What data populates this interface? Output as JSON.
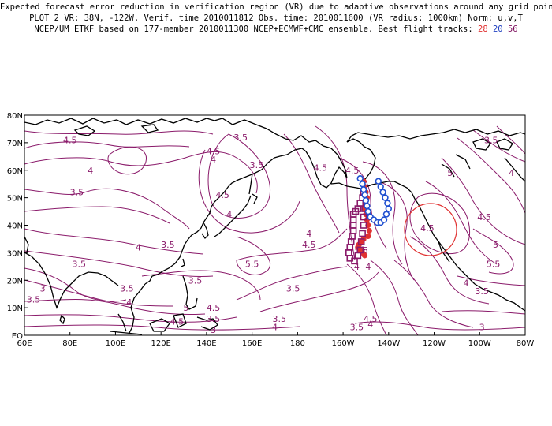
{
  "header": {
    "line1": "Expected forecast error reduction in verification region (VR) due to adaptive observations around any grid point.",
    "line2": "PLOT 2 VR: 38N, -122W, Verif. time 2010011812 Obs. time: 2010011600 (VR radius: 1000km) Norm: u,v,T",
    "line3_text": "NCEP/UM ETKF based on 177-member 2010011300 NCEP+ECMWF+CMC ensemble. Best flight tracks: ",
    "track_28": "28",
    "track_20": "20",
    "track_56": "56"
  },
  "axes": {
    "x_ticks": [
      "60E",
      "80E",
      "100E",
      "120E",
      "140E",
      "160E",
      "180",
      "160W",
      "140W",
      "120W",
      "100W",
      "80W"
    ],
    "y_ticks": [
      "80N",
      "70N",
      "60N",
      "50N",
      "40N",
      "30N",
      "20N",
      "10N",
      "EQ"
    ]
  },
  "map": {
    "extent": {
      "lon_min": 60,
      "lon_max": 280,
      "lat_min": 0,
      "lat_max": 80
    },
    "verification_region": {
      "lat": 38,
      "lon": -122,
      "radius_km": 1000
    },
    "contour_color": "#8a1a6a",
    "contour_labels": [
      {
        "text": "4.5",
        "lon": 80,
        "lat": 71
      },
      {
        "text": "4",
        "lon": 89,
        "lat": 60
      },
      {
        "text": "3.5",
        "lon": 83,
        "lat": 52
      },
      {
        "text": "4",
        "lon": 110,
        "lat": 32
      },
      {
        "text": "3.5",
        "lon": 84,
        "lat": 26
      },
      {
        "text": "3",
        "lon": 68,
        "lat": 17
      },
      {
        "text": "3.5",
        "lon": 64,
        "lat": 13
      },
      {
        "text": "3.5",
        "lon": 105,
        "lat": 17
      },
      {
        "text": "4",
        "lon": 106,
        "lat": 12
      },
      {
        "text": "3.5",
        "lon": 123,
        "lat": 33
      },
      {
        "text": "5",
        "lon": 131,
        "lat": 10
      },
      {
        "text": "4.5",
        "lon": 127,
        "lat": 5
      },
      {
        "text": "3.5",
        "lon": 135,
        "lat": 20
      },
      {
        "text": "4.5",
        "lon": 143,
        "lat": 10
      },
      {
        "text": "3.5",
        "lon": 143,
        "lat": 6
      },
      {
        "text": "3",
        "lon": 143,
        "lat": 2
      },
      {
        "text": "4.5",
        "lon": 143,
        "lat": 67
      },
      {
        "text": "4",
        "lon": 143,
        "lat": 64
      },
      {
        "text": "3.5",
        "lon": 155,
        "lat": 72
      },
      {
        "text": "4.5",
        "lon": 147,
        "lat": 51
      },
      {
        "text": "4",
        "lon": 150,
        "lat": 44
      },
      {
        "text": "3.5",
        "lon": 162,
        "lat": 62
      },
      {
        "text": "5.5",
        "lon": 160,
        "lat": 26
      },
      {
        "text": "4",
        "lon": 185,
        "lat": 37
      },
      {
        "text": "4.5",
        "lon": 185,
        "lat": 33
      },
      {
        "text": "3.5",
        "lon": 178,
        "lat": 17
      },
      {
        "text": "3.5",
        "lon": 172,
        "lat": 6
      },
      {
        "text": "4",
        "lon": 170,
        "lat": 3
      },
      {
        "text": "4.5",
        "lon": 190,
        "lat": 61
      },
      {
        "text": "4.5",
        "lon": 204,
        "lat": 60
      },
      {
        "text": "4",
        "lon": 206,
        "lat": 25
      },
      {
        "text": "4",
        "lon": 211,
        "lat": 25
      },
      {
        "text": "5.5",
        "lon": 208,
        "lat": 31
      },
      {
        "text": "5",
        "lon": 209,
        "lat": 30
      },
      {
        "text": "4.5",
        "lon": 212,
        "lat": 6
      },
      {
        "text": "4",
        "lon": 212,
        "lat": 4
      },
      {
        "text": "3.5",
        "lon": 206,
        "lat": 3
      },
      {
        "text": "5",
        "lon": 247,
        "lat": 59
      },
      {
        "text": "4.5",
        "lon": 237,
        "lat": 39
      },
      {
        "text": "4.5",
        "lon": 262,
        "lat": 43
      },
      {
        "text": "5",
        "lon": 267,
        "lat": 33
      },
      {
        "text": "5.5",
        "lon": 266,
        "lat": 26
      },
      {
        "text": "4",
        "lon": 254,
        "lat": 19
      },
      {
        "text": "3.5",
        "lon": 261,
        "lat": 16
      },
      {
        "text": "3",
        "lon": 261,
        "lat": 3
      },
      {
        "text": "3.5",
        "lon": 265,
        "lat": 71
      },
      {
        "text": "4",
        "lon": 274,
        "lat": 59
      }
    ],
    "tracks": {
      "track_28": {
        "color": "#e03030",
        "marker": "filled-circle",
        "points": [
          [
            209,
            56
          ],
          [
            209.5,
            54
          ],
          [
            210,
            52
          ],
          [
            210.5,
            50
          ],
          [
            210,
            48
          ],
          [
            209.5,
            46
          ],
          [
            210,
            44
          ],
          [
            210.5,
            42
          ],
          [
            211,
            40
          ],
          [
            211.5,
            38
          ],
          [
            211,
            36
          ],
          [
            209,
            35
          ],
          [
            208,
            34
          ],
          [
            207,
            33
          ],
          [
            206.5,
            32
          ],
          [
            207.5,
            31
          ],
          [
            208.5,
            30
          ],
          [
            209.5,
            29
          ]
        ]
      },
      "track_20": {
        "color": "#2050d0",
        "marker": "open-circle",
        "points": [
          [
            207.5,
            57
          ],
          [
            208.5,
            55
          ],
          [
            209,
            53
          ],
          [
            209.5,
            51
          ],
          [
            210,
            49
          ],
          [
            210.5,
            47
          ],
          [
            211,
            45
          ],
          [
            212,
            43
          ],
          [
            213.5,
            42
          ],
          [
            215,
            41
          ],
          [
            216.5,
            41
          ],
          [
            218,
            42
          ],
          [
            219,
            44
          ],
          [
            220,
            46
          ],
          [
            219.5,
            48
          ],
          [
            218.5,
            50
          ],
          [
            217.5,
            52
          ],
          [
            216.5,
            54
          ],
          [
            215.5,
            56
          ]
        ]
      },
      "track_56": {
        "color": "#8a1a6a",
        "marker": "open-square",
        "points": [
          [
            209,
            52
          ],
          [
            208.5,
            50
          ],
          [
            207.5,
            48
          ],
          [
            206.5,
            46
          ],
          [
            205.5,
            45
          ],
          [
            204.5,
            44
          ],
          [
            204.5,
            42
          ],
          [
            204.5,
            40
          ],
          [
            204.5,
            38
          ],
          [
            204,
            36
          ],
          [
            203.5,
            34
          ],
          [
            203,
            32
          ],
          [
            202.5,
            30
          ],
          [
            203,
            28
          ],
          [
            205,
            27
          ],
          [
            206.5,
            29
          ],
          [
            207.5,
            31
          ],
          [
            208,
            34
          ],
          [
            208.5,
            37
          ],
          [
            209,
            40
          ],
          [
            209,
            43
          ],
          [
            209.5,
            46
          ]
        ]
      }
    }
  }
}
